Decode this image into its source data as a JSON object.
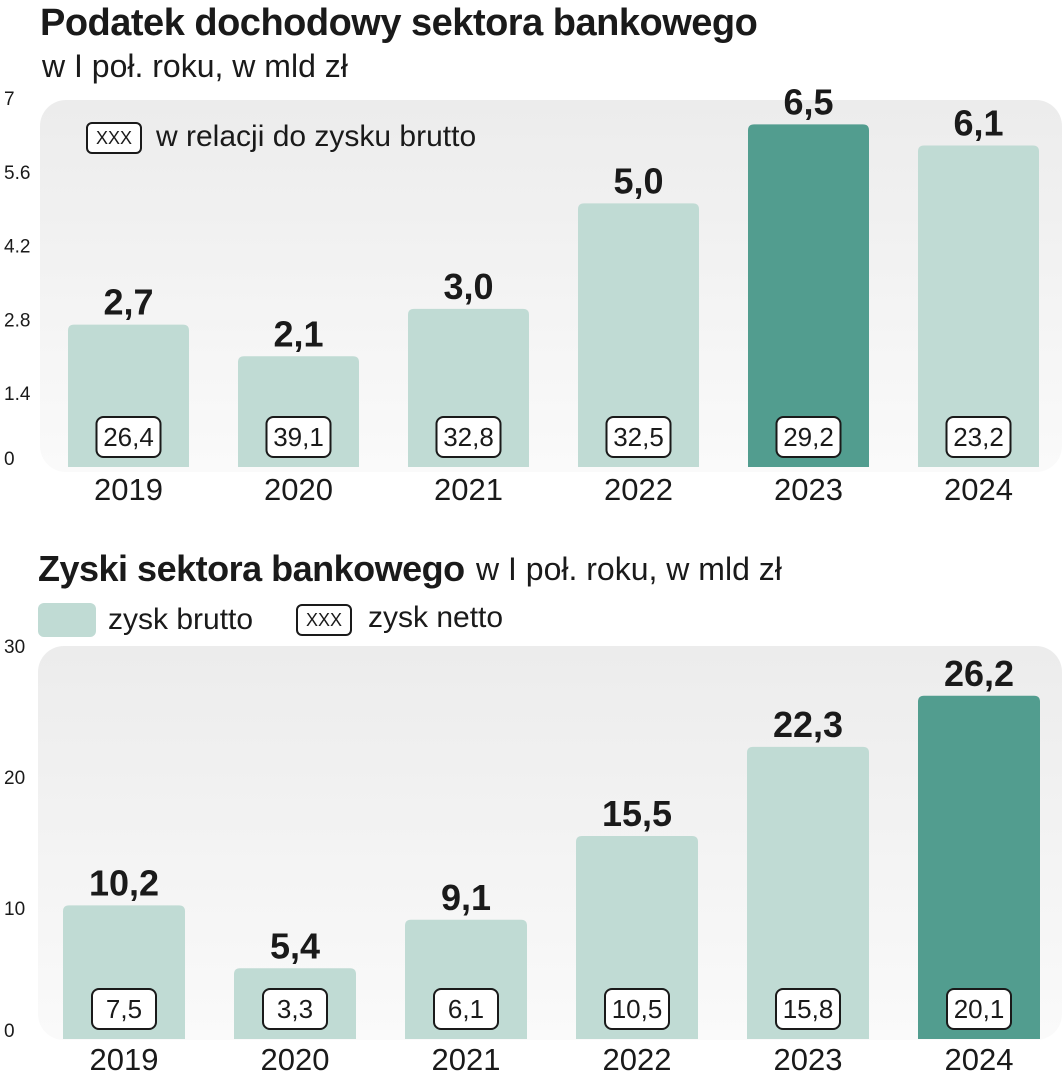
{
  "colors": {
    "bar": "#c0dbd4",
    "highlight": "#529d8f",
    "panel": "#eeeeee",
    "text": "#1a1a1a"
  },
  "tax_chart": {
    "title": "Podatek dochodowy sektora bankowego",
    "subtitle": "w I poł. roku, w mld zł",
    "legend_box_text": "XXX",
    "legend_text": "w relacji do zysku brutto"
  },
  "profit_chart": {
    "title": "Zyski sektora bankowego",
    "subtitle": "w I poł. roku, w mld zł",
    "legend_brutto": "zysk brutto",
    "legend_box_text": "XXX",
    "legend_netto": "zysk netto"
  },
  "chart_data": [
    {
      "type": "bar",
      "title": "Podatek dochodowy sektora bankowego",
      "subtitle": "w I poł. roku, w mld zł",
      "categories": [
        "2019",
        "2020",
        "2021",
        "2022",
        "2023",
        "2024"
      ],
      "values": [
        2.7,
        2.1,
        3.0,
        5.0,
        6.5,
        6.1
      ],
      "value_labels": [
        "2,7",
        "2,1",
        "3,0",
        "5,0",
        "6,5",
        "6,1"
      ],
      "box_labels": [
        "26,4",
        "39,1",
        "32,8",
        "32,5",
        "29,2",
        "23,2"
      ],
      "highlight_index": 4,
      "ylim": [
        0,
        7
      ],
      "yticks": [
        0,
        1.4,
        2.8,
        4.2,
        5.6,
        7
      ],
      "ytick_labels": [
        "0",
        "1.4",
        "2.8",
        "4.2",
        "5.6",
        "7"
      ],
      "xlabel": "",
      "ylabel": "",
      "grid": false,
      "legend": "top-left"
    },
    {
      "type": "bar",
      "title": "Zyski sektora bankowego",
      "subtitle": "w I poł. roku, w mld zł",
      "categories": [
        "2019",
        "2020",
        "2021",
        "2022",
        "2023",
        "2024"
      ],
      "series": [
        {
          "name": "zysk brutto",
          "values": [
            10.2,
            5.4,
            9.1,
            15.5,
            22.3,
            26.2
          ],
          "labels": [
            "10,2",
            "5,4",
            "9,1",
            "15,5",
            "22,3",
            "26,2"
          ]
        },
        {
          "name": "zysk netto",
          "values": [
            7.5,
            3.3,
            6.1,
            10.5,
            15.8,
            20.1
          ],
          "labels": [
            "7,5",
            "3,3",
            "6,1",
            "10,5",
            "15,8",
            "20,1"
          ]
        }
      ],
      "highlight_index": 5,
      "ylim": [
        0,
        30
      ],
      "yticks": [
        0,
        10,
        20,
        30
      ],
      "ytick_labels": [
        "0",
        "10",
        "20",
        "30"
      ],
      "xlabel": "",
      "ylabel": "",
      "grid": false,
      "legend": "top-left"
    }
  ]
}
